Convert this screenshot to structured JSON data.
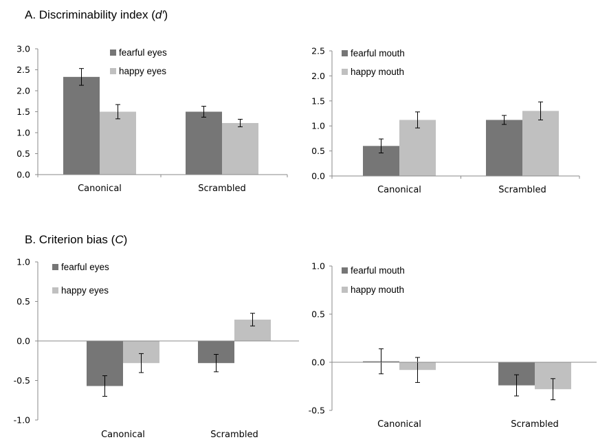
{
  "titles": {
    "a_prefix": "A. Discriminability index (",
    "a_symbol": "d′",
    "a_suffix": ")",
    "b_prefix": "B. Criterion bias (",
    "b_symbol": "C",
    "b_suffix": ")"
  },
  "colors": {
    "dark": "#767676",
    "light": "#c0c0c0",
    "axis": "#8a8a8a"
  },
  "chart_data": [
    {
      "type": "bar",
      "panel": "A-left",
      "categories": [
        "Canonical",
        "Scrambled"
      ],
      "series": [
        {
          "name": "fearful eyes",
          "values": [
            2.33,
            1.5
          ],
          "errors": [
            0.2,
            0.13
          ]
        },
        {
          "name": "happy eyes",
          "values": [
            1.5,
            1.23
          ],
          "errors": [
            0.17,
            0.09
          ]
        }
      ],
      "ylim": [
        0,
        3.0
      ],
      "yticks": [
        "0.0",
        "0.5",
        "1.0",
        "1.5",
        "2.0",
        "2.5",
        "3.0"
      ],
      "legend": "top-left"
    },
    {
      "type": "bar",
      "panel": "A-right",
      "categories": [
        "Canonical",
        "Scrambled"
      ],
      "series": [
        {
          "name": "fearful mouth",
          "values": [
            0.6,
            1.12
          ],
          "errors": [
            0.14,
            0.09
          ]
        },
        {
          "name": "happy mouth",
          "values": [
            1.12,
            1.3
          ],
          "errors": [
            0.16,
            0.18
          ]
        }
      ],
      "ylim": [
        0,
        2.5
      ],
      "yticks": [
        "0.0",
        "0.5",
        "1.0",
        "1.5",
        "2.0",
        "2.5"
      ],
      "legend": "top-left"
    },
    {
      "type": "bar",
      "panel": "B-left",
      "categories": [
        "Canonical",
        "Scrambled"
      ],
      "series": [
        {
          "name": "fearful eyes",
          "values": [
            -0.57,
            -0.28
          ],
          "errors": [
            0.13,
            0.11
          ]
        },
        {
          "name": "happy eyes",
          "values": [
            -0.28,
            0.27
          ],
          "errors": [
            0.12,
            0.08
          ]
        }
      ],
      "ylim": [
        -1.0,
        1.0
      ],
      "yticks": [
        "-1.0",
        "-0.5",
        "0.0",
        "0.5",
        "1.0"
      ],
      "legend": "top-left"
    },
    {
      "type": "bar",
      "panel": "B-right",
      "categories": [
        "Canonical",
        "Scrambled"
      ],
      "series": [
        {
          "name": "fearful mouth",
          "values": [
            0.01,
            -0.24
          ],
          "errors": [
            0.13,
            0.11
          ]
        },
        {
          "name": "happy mouth",
          "values": [
            -0.08,
            -0.28
          ],
          "errors": [
            0.13,
            0.11
          ]
        }
      ],
      "ylim": [
        -0.5,
        1.0
      ],
      "yticks": [
        "-0.5",
        "0.0",
        "0.5",
        "1.0"
      ],
      "legend": "top-left"
    }
  ]
}
